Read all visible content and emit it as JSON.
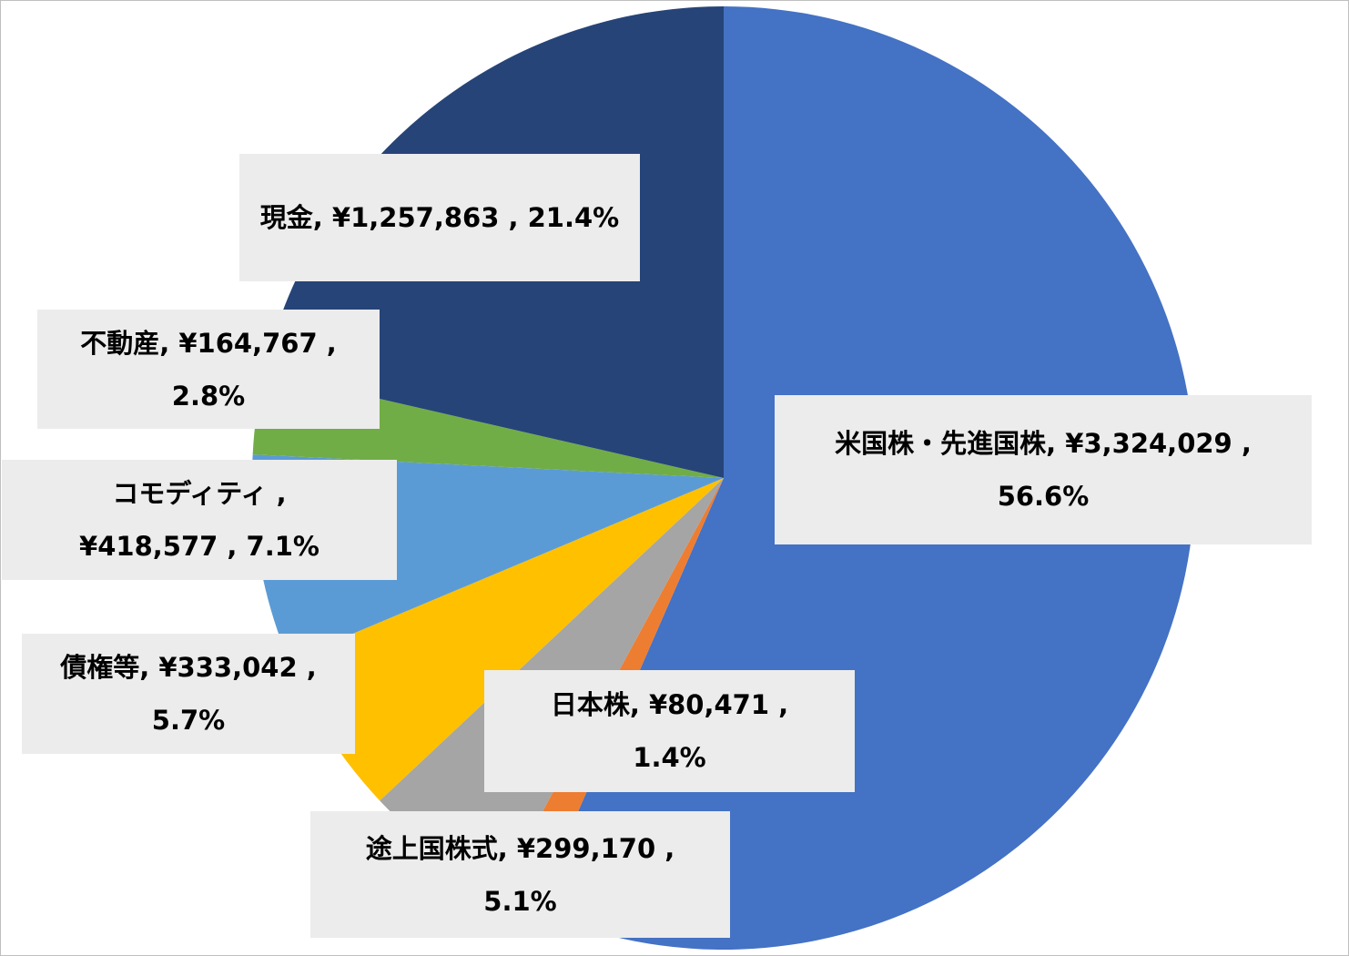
{
  "chart_data": {
    "type": "pie",
    "start_angle_deg": 0,
    "direction": "clockwise",
    "slices": [
      {
        "label": "米国株・先進国株",
        "value": 3324029,
        "value_text": "¥3,324,029",
        "percent": 56.6,
        "percent_text": "56.6%",
        "color": "#4472c4"
      },
      {
        "label": "日本株",
        "value": 80471,
        "value_text": "¥80,471",
        "percent": 1.4,
        "percent_text": "1.4%",
        "color": "#ed7d31"
      },
      {
        "label": "途上国株式",
        "value": 299170,
        "value_text": "¥299,170",
        "percent": 5.1,
        "percent_text": "5.1%",
        "color": "#a5a5a5"
      },
      {
        "label": "債権等",
        "value": 333042,
        "value_text": "¥333,042",
        "percent": 5.7,
        "percent_text": "5.7%",
        "color": "#ffc000"
      },
      {
        "label": "コモディティ",
        "value": 418577,
        "value_text": "¥418,577",
        "percent": 7.1,
        "percent_text": "7.1%",
        "color": "#5b9bd5"
      },
      {
        "label": "不動産",
        "value": 164767,
        "value_text": "¥164,767",
        "percent": 2.8,
        "percent_text": "2.8%",
        "color": "#70ad47"
      },
      {
        "label": "現金",
        "value": 1257863,
        "value_text": "¥1,257,863",
        "percent": 21.4,
        "percent_text": "21.4%",
        "color": "#264478"
      }
    ]
  }
}
